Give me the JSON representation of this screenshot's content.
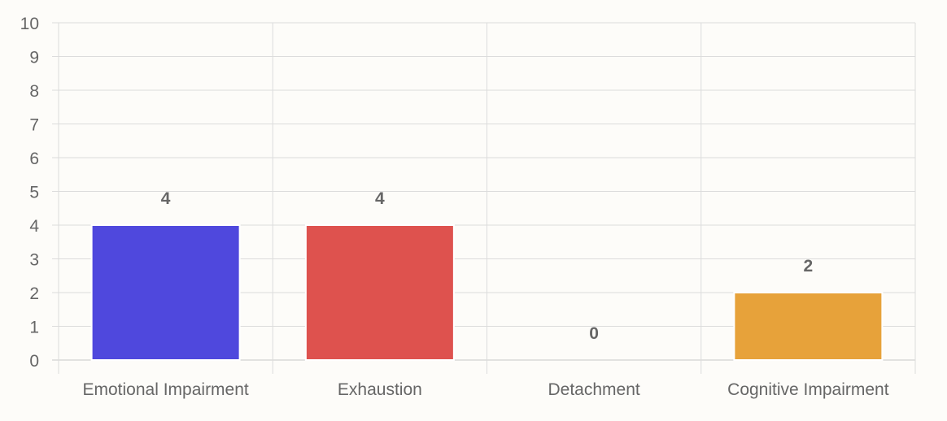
{
  "chart_data": {
    "type": "bar",
    "categories": [
      "Emotional Impairment",
      "Exhaustion",
      "Detachment",
      "Cognitive Impairment"
    ],
    "values": [
      4,
      4,
      0,
      2
    ],
    "data_labels": [
      "4",
      "4",
      "0",
      "2"
    ],
    "colors": [
      "#4f48dd",
      "#de524e",
      "#9a9a9a",
      "#e7a23a"
    ],
    "y_ticks": [
      "0",
      "1",
      "2",
      "3",
      "4",
      "5",
      "6",
      "7",
      "8",
      "9",
      "10"
    ],
    "ylim": [
      0,
      10
    ],
    "grid": true,
    "legend": "none"
  },
  "theme": {
    "background": "#fdfcf9",
    "grid_color": "#dcdcdc",
    "text_color": "#666666",
    "label_color": "#555555"
  }
}
